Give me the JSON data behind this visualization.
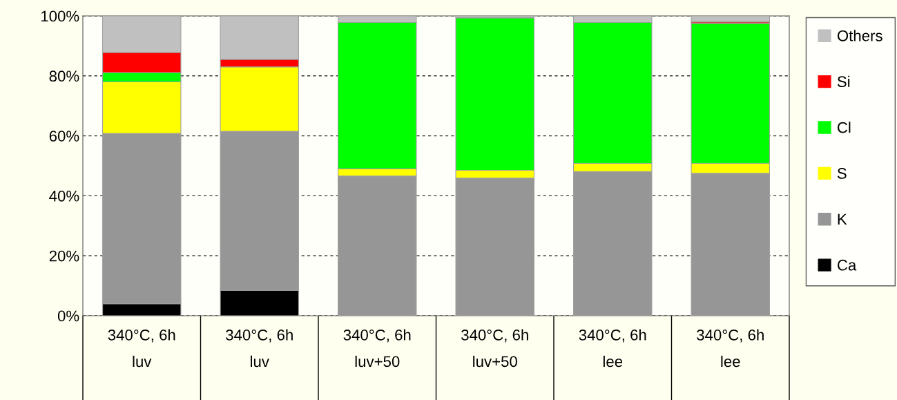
{
  "chart_data": {
    "type": "bar",
    "stacked": true,
    "categories": [
      "340°C, 6h\nluv",
      "340°C, 6h\nluv",
      "340°C, 6h\nluv+50",
      "340°C, 6h\nluv+50",
      "340°C, 6h\nlee",
      "340°C, 6h\nlee"
    ],
    "series": [
      {
        "name": "Ca",
        "color": "#000000",
        "values": [
          4,
          8.5,
          0,
          0,
          0,
          0
        ]
      },
      {
        "name": "K",
        "color": "#969696",
        "values": [
          56.8,
          53,
          46.6,
          45.9,
          48.1,
          47.5
        ]
      },
      {
        "name": "S",
        "color": "#ffff00",
        "values": [
          17.2,
          21.5,
          2.4,
          2.6,
          2.7,
          3.3
        ]
      },
      {
        "name": "Cl",
        "color": "#00ff00",
        "values": [
          3.1,
          0,
          48.8,
          50.9,
          47.0,
          46.7
        ]
      },
      {
        "name": "Si",
        "color": "#ff0000",
        "values": [
          6.7,
          2.5,
          0,
          0,
          0,
          0.5
        ]
      },
      {
        "name": "Others",
        "color": "#c0c0c0",
        "values": [
          12.2,
          14.5,
          2.2,
          0.6,
          2.2,
          2.0
        ]
      }
    ],
    "ylim": [
      0,
      100
    ],
    "yticks": [
      {
        "value": 0,
        "label": "0%"
      },
      {
        "value": 20,
        "label": "20%"
      },
      {
        "value": 40,
        "label": "40%"
      },
      {
        "value": 60,
        "label": "60%"
      },
      {
        "value": 80,
        "label": "80%"
      },
      {
        "value": 100,
        "label": "100%"
      }
    ],
    "grid": "y",
    "legend": "right"
  }
}
